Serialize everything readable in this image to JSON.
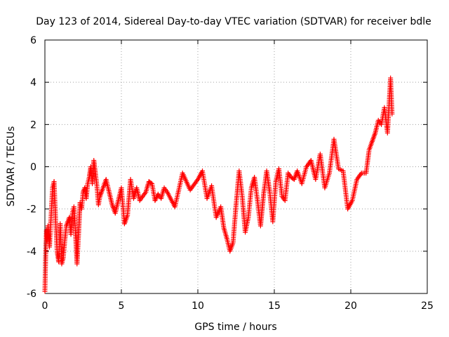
{
  "chart_data": {
    "type": "scatter",
    "title": "Day 123 of 2014, Sidereal Day-to-day VTEC variation (SDTVAR) for receiver bdle",
    "xlabel": "GPS time / hours",
    "ylabel": "SDTVAR / TECUs",
    "xlim": [
      0,
      25
    ],
    "ylim": [
      -6,
      6
    ],
    "xticks": [
      0,
      5,
      10,
      15,
      20,
      25
    ],
    "yticks": [
      -6,
      -4,
      -2,
      0,
      2,
      4,
      6
    ],
    "grid": true,
    "marker": "+",
    "color": "#ff0000",
    "series": [
      {
        "name": "SDTVAR",
        "x": [
          0.0,
          0.05,
          0.1,
          0.15,
          0.2,
          0.3,
          0.4,
          0.5,
          0.6,
          0.7,
          0.8,
          0.9,
          1.0,
          1.1,
          1.2,
          1.3,
          1.4,
          1.5,
          1.6,
          1.7,
          1.8,
          1.9,
          2.0,
          2.1,
          2.2,
          2.3,
          2.4,
          2.5,
          2.6,
          2.7,
          2.8,
          2.9,
          3.0,
          3.1,
          3.2,
          3.3,
          3.4,
          3.5,
          3.6,
          3.8,
          4.0,
          4.2,
          4.4,
          4.6,
          4.8,
          5.0,
          5.2,
          5.4,
          5.6,
          5.8,
          6.0,
          6.2,
          6.4,
          6.6,
          6.8,
          7.0,
          7.2,
          7.4,
          7.6,
          7.8,
          8.0,
          8.5,
          9.0,
          9.5,
          10.0,
          10.3,
          10.6,
          10.9,
          11.2,
          11.5,
          11.7,
          11.9,
          12.1,
          12.3,
          12.5,
          12.7,
          12.9,
          13.1,
          13.3,
          13.5,
          13.7,
          13.9,
          14.1,
          14.3,
          14.5,
          14.7,
          14.9,
          15.1,
          15.3,
          15.5,
          15.7,
          15.9,
          16.1,
          16.3,
          16.5,
          16.8,
          17.1,
          17.4,
          17.7,
          18.0,
          18.3,
          18.6,
          18.9,
          19.2,
          19.5,
          19.8,
          20.1,
          20.4,
          20.7,
          21.0,
          21.2,
          21.4,
          21.6,
          21.8,
          22.0,
          22.2,
          22.4,
          22.6,
          22.7
        ],
        "y": [
          -5.9,
          -4.2,
          -3.0,
          -3.5,
          -2.8,
          -3.8,
          -2.4,
          -1.0,
          -0.7,
          -2.5,
          -4.0,
          -4.5,
          -2.7,
          -4.6,
          -4.3,
          -3.5,
          -2.8,
          -2.6,
          -2.4,
          -3.2,
          -2.2,
          -1.9,
          -3.1,
          -4.6,
          -3.2,
          -1.7,
          -2.0,
          -1.2,
          -1.0,
          -1.5,
          -0.8,
          -0.5,
          0.0,
          -0.8,
          0.3,
          -0.3,
          -0.9,
          -1.8,
          -1.4,
          -1.0,
          -0.6,
          -1.2,
          -1.8,
          -2.2,
          -1.6,
          -1.0,
          -2.7,
          -2.3,
          -0.6,
          -1.5,
          -1.0,
          -1.6,
          -1.4,
          -1.2,
          -0.7,
          -0.8,
          -1.6,
          -1.3,
          -1.5,
          -1.0,
          -1.2,
          -1.9,
          -0.3,
          -1.1,
          -0.6,
          -0.2,
          -1.5,
          -0.9,
          -2.4,
          -1.9,
          -2.9,
          -3.4,
          -4.0,
          -3.6,
          -1.8,
          -0.2,
          -1.4,
          -3.1,
          -2.4,
          -1.0,
          -0.5,
          -1.6,
          -2.8,
          -1.3,
          -0.2,
          -1.2,
          -2.6,
          -0.7,
          -0.1,
          -1.4,
          -1.6,
          -0.3,
          -0.5,
          -0.6,
          -0.2,
          -0.8,
          0.0,
          0.3,
          -0.6,
          0.6,
          -1.0,
          -0.3,
          1.3,
          -0.1,
          -0.2,
          -2.0,
          -1.6,
          -0.6,
          -0.3,
          -0.3,
          0.8,
          1.2,
          1.6,
          2.2,
          2.0,
          2.8,
          1.6,
          4.2,
          2.5
        ]
      }
    ]
  }
}
